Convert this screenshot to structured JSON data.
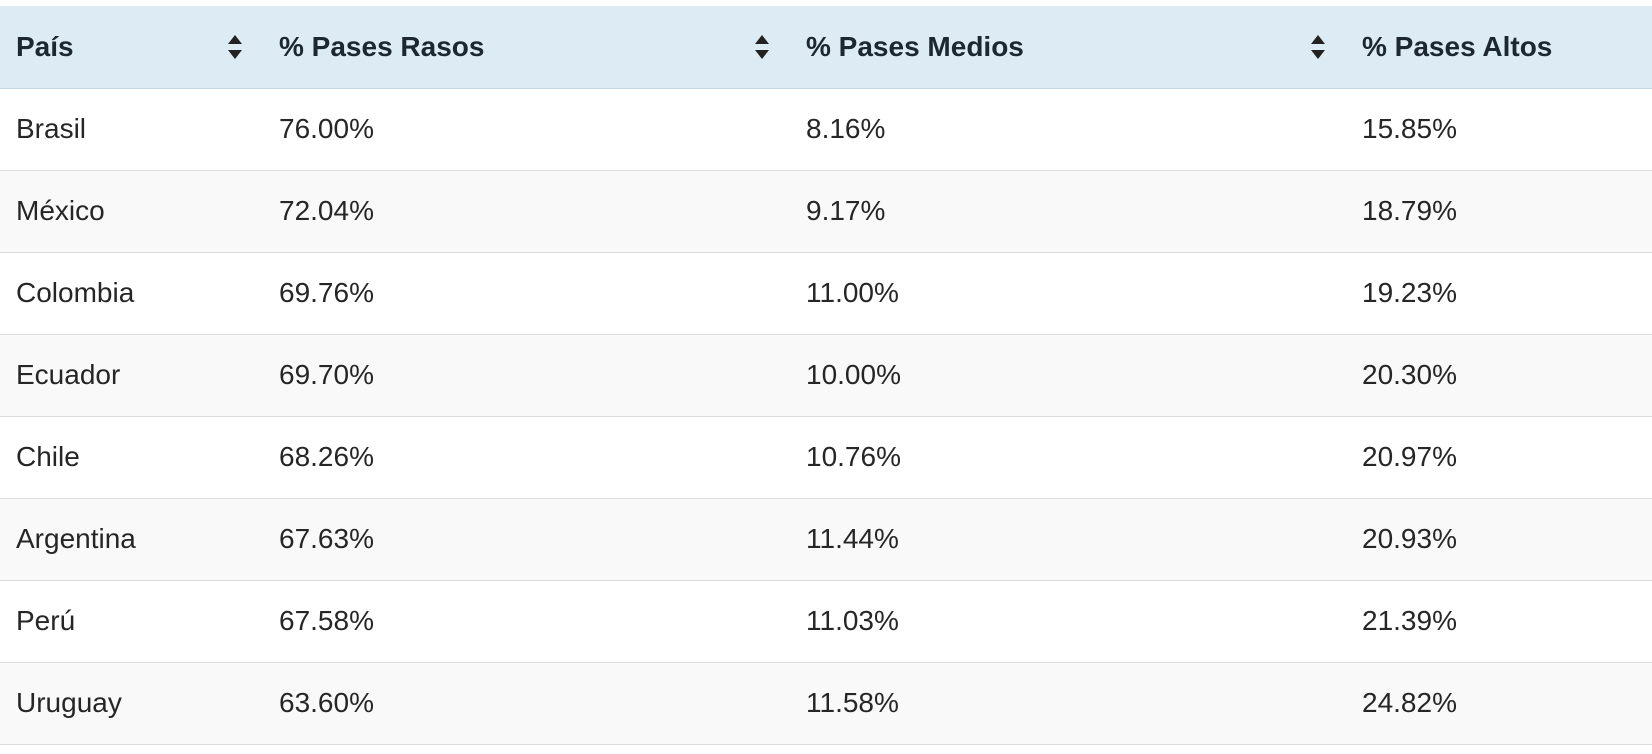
{
  "table": {
    "headers": [
      "País",
      "% Pases Rasos",
      "% Pases Medios",
      "% Pases Altos"
    ],
    "rows": [
      [
        "Brasil",
        "76.00%",
        "8.16%",
        "15.85%"
      ],
      [
        "México",
        "72.04%",
        "9.17%",
        "18.79%"
      ],
      [
        "Colombia",
        "69.76%",
        "11.00%",
        "19.23%"
      ],
      [
        "Ecuador",
        "69.70%",
        "10.00%",
        "20.30%"
      ],
      [
        "Chile",
        "68.26%",
        "10.76%",
        "20.97%"
      ],
      [
        "Argentina",
        "67.63%",
        "11.44%",
        "20.93%"
      ],
      [
        "Perú",
        "67.58%",
        "11.03%",
        "21.39%"
      ],
      [
        "Uruguay",
        "63.60%",
        "11.58%",
        "24.82%"
      ]
    ]
  }
}
